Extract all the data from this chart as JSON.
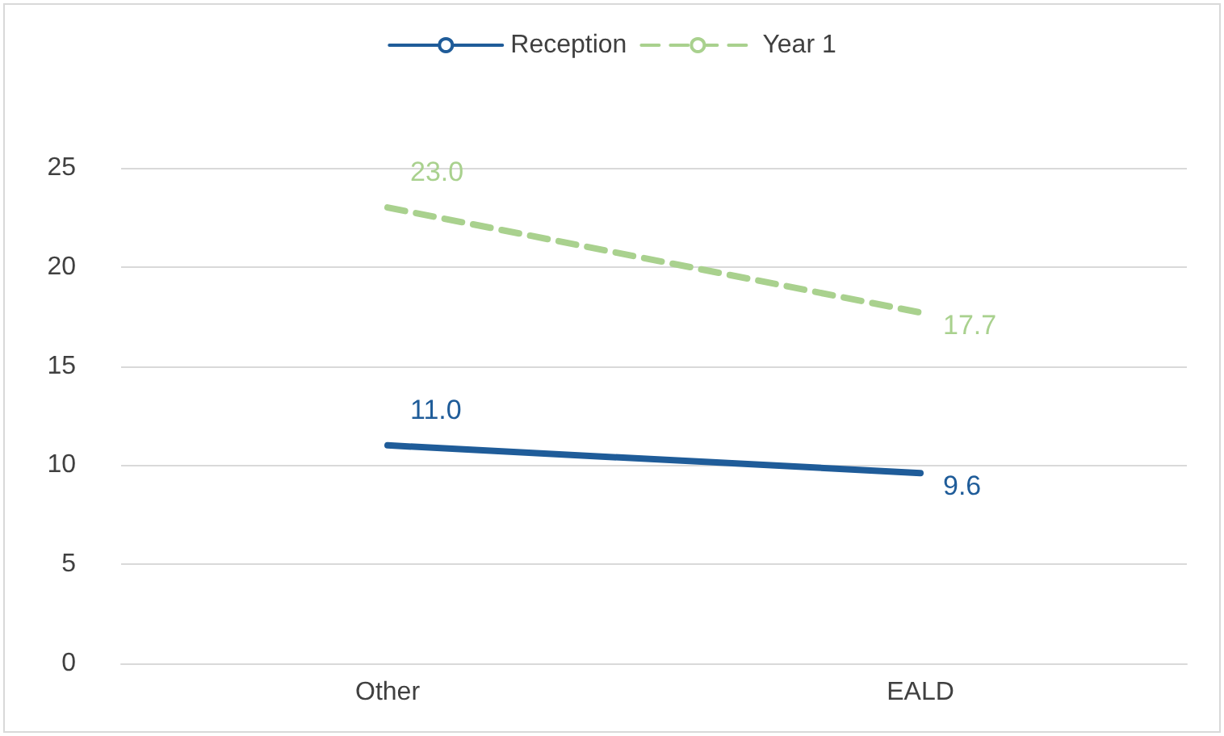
{
  "chart_data": {
    "type": "line",
    "categories": [
      "Other",
      "EALD"
    ],
    "series": [
      {
        "name": "Reception",
        "color": "#1f5c99",
        "values": [
          11.0,
          9.6
        ],
        "value_labels": [
          "11.0",
          "9.6"
        ],
        "line_style": "solid"
      },
      {
        "name": "Year 1",
        "color": "#a9d18e",
        "values": [
          23.0,
          17.7
        ],
        "value_labels": [
          "23.0",
          "17.7"
        ],
        "line_style": "dashed"
      }
    ],
    "ylim": [
      0,
      25
    ],
    "yticks": [
      0,
      5,
      10,
      15,
      20,
      25
    ],
    "grid": "y",
    "legend": "top",
    "marker": "none"
  }
}
